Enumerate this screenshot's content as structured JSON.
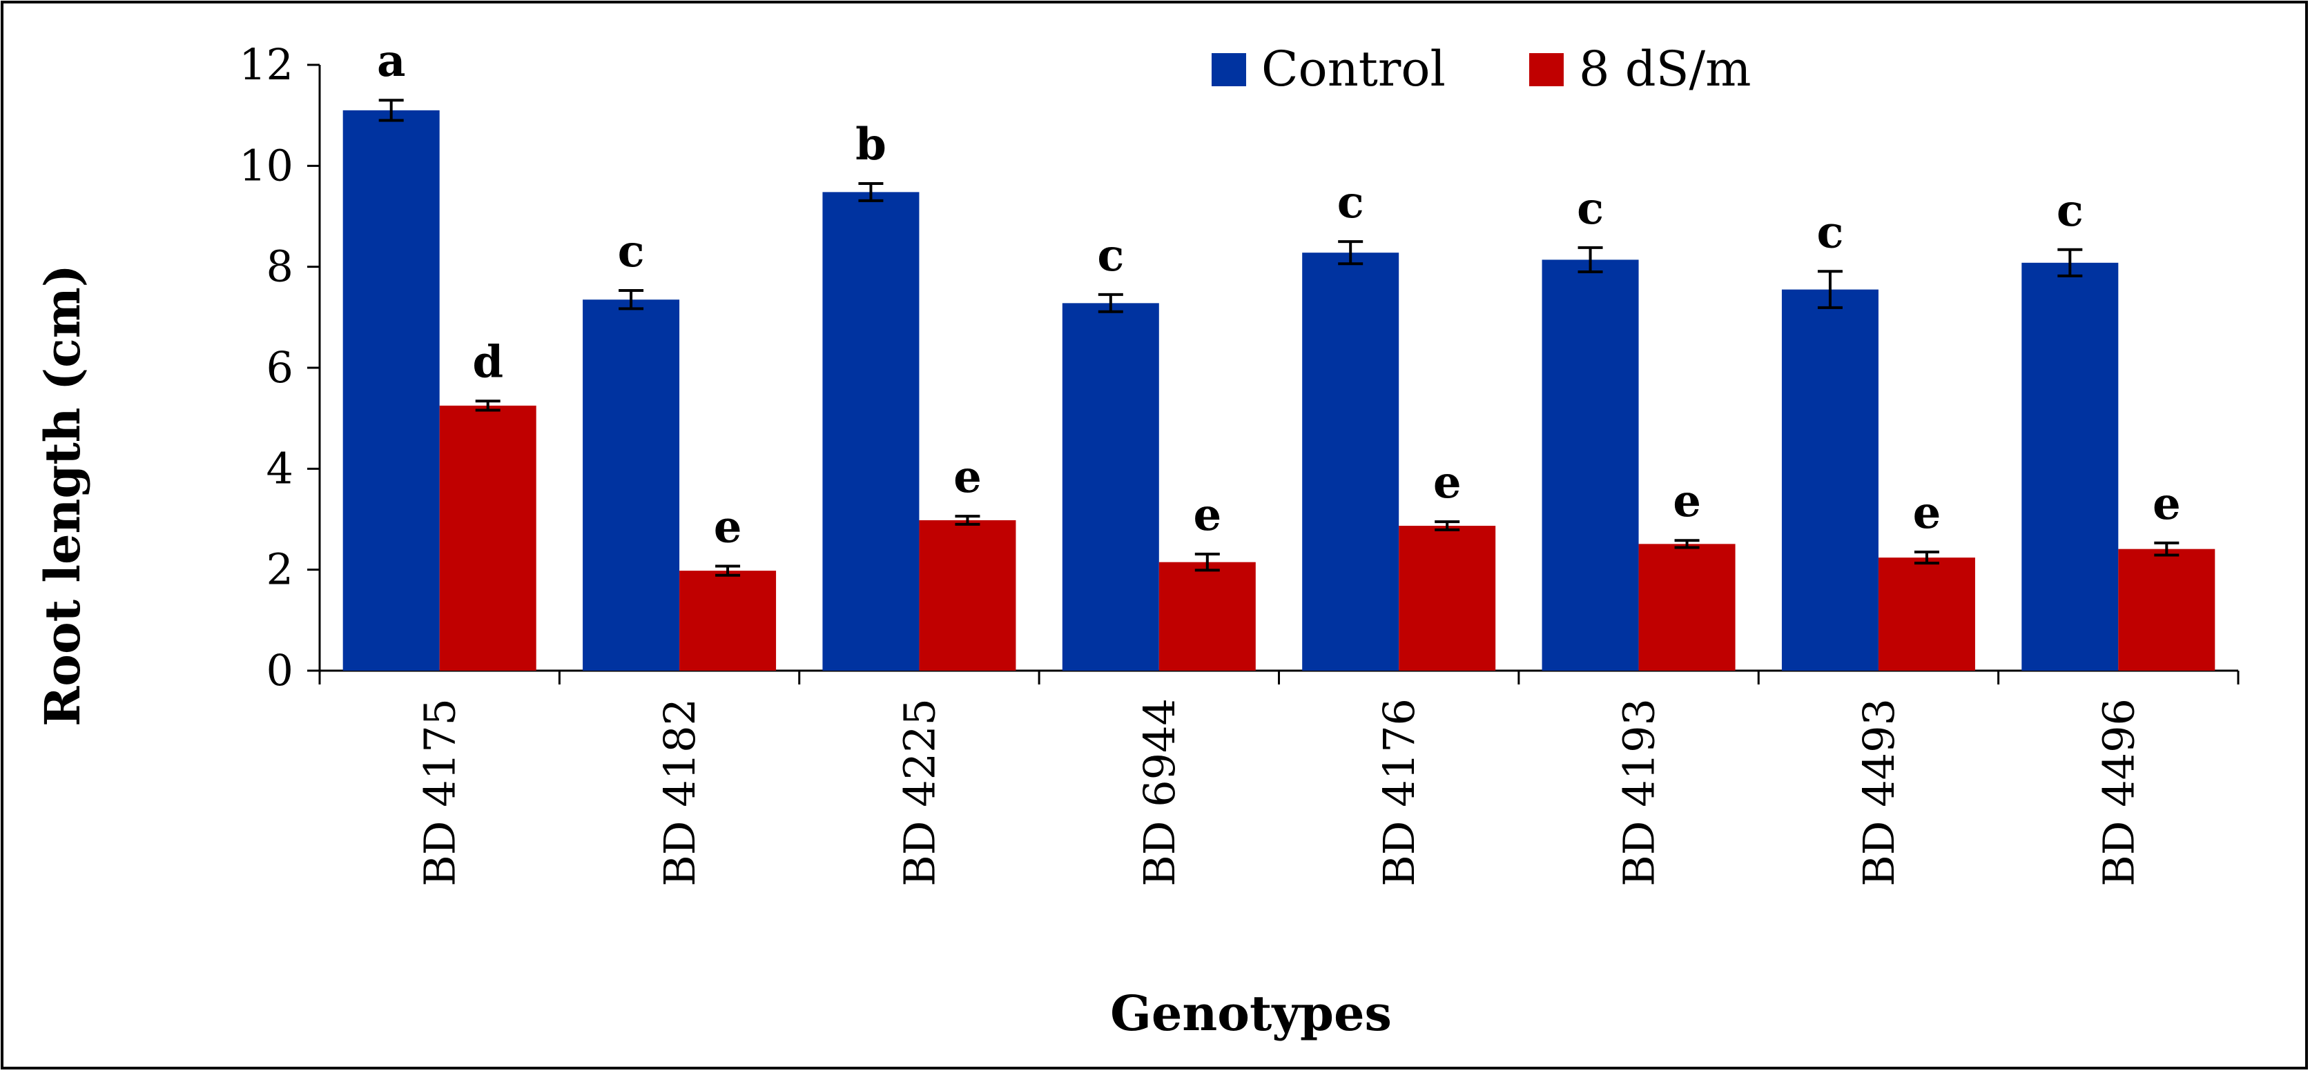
{
  "chart_data": {
    "type": "bar",
    "title": "",
    "xlabel": "Genotypes",
    "ylabel": "Root length (cm)",
    "ylim": [
      0,
      12
    ],
    "yticks": [
      0,
      2,
      4,
      6,
      8,
      10,
      12
    ],
    "legend_position": "top-center",
    "grid": false,
    "categories": [
      "BD 4175",
      "BD 4182",
      "BD 4225",
      "BD 6944",
      "BD 4176",
      "BD 4193",
      "BD 4493",
      "BD 4496"
    ],
    "series": [
      {
        "name": "Control",
        "color": "#0033a0",
        "values": [
          11.1,
          7.35,
          9.48,
          7.28,
          8.28,
          8.14,
          7.55,
          8.08
        ],
        "errors": [
          0.2,
          0.18,
          0.17,
          0.17,
          0.22,
          0.24,
          0.36,
          0.26
        ],
        "significance": [
          "a",
          "c",
          "b",
          "c",
          "c",
          "c",
          "c",
          "c"
        ]
      },
      {
        "name": "8 dS/m",
        "color": "#c00000",
        "values": [
          5.25,
          1.98,
          2.98,
          2.15,
          2.87,
          2.51,
          2.24,
          2.41
        ],
        "errors": [
          0.09,
          0.09,
          0.08,
          0.16,
          0.08,
          0.07,
          0.11,
          0.12
        ],
        "significance": [
          "d",
          "e",
          "e",
          "e",
          "e",
          "e",
          "e",
          "e"
        ]
      }
    ]
  }
}
